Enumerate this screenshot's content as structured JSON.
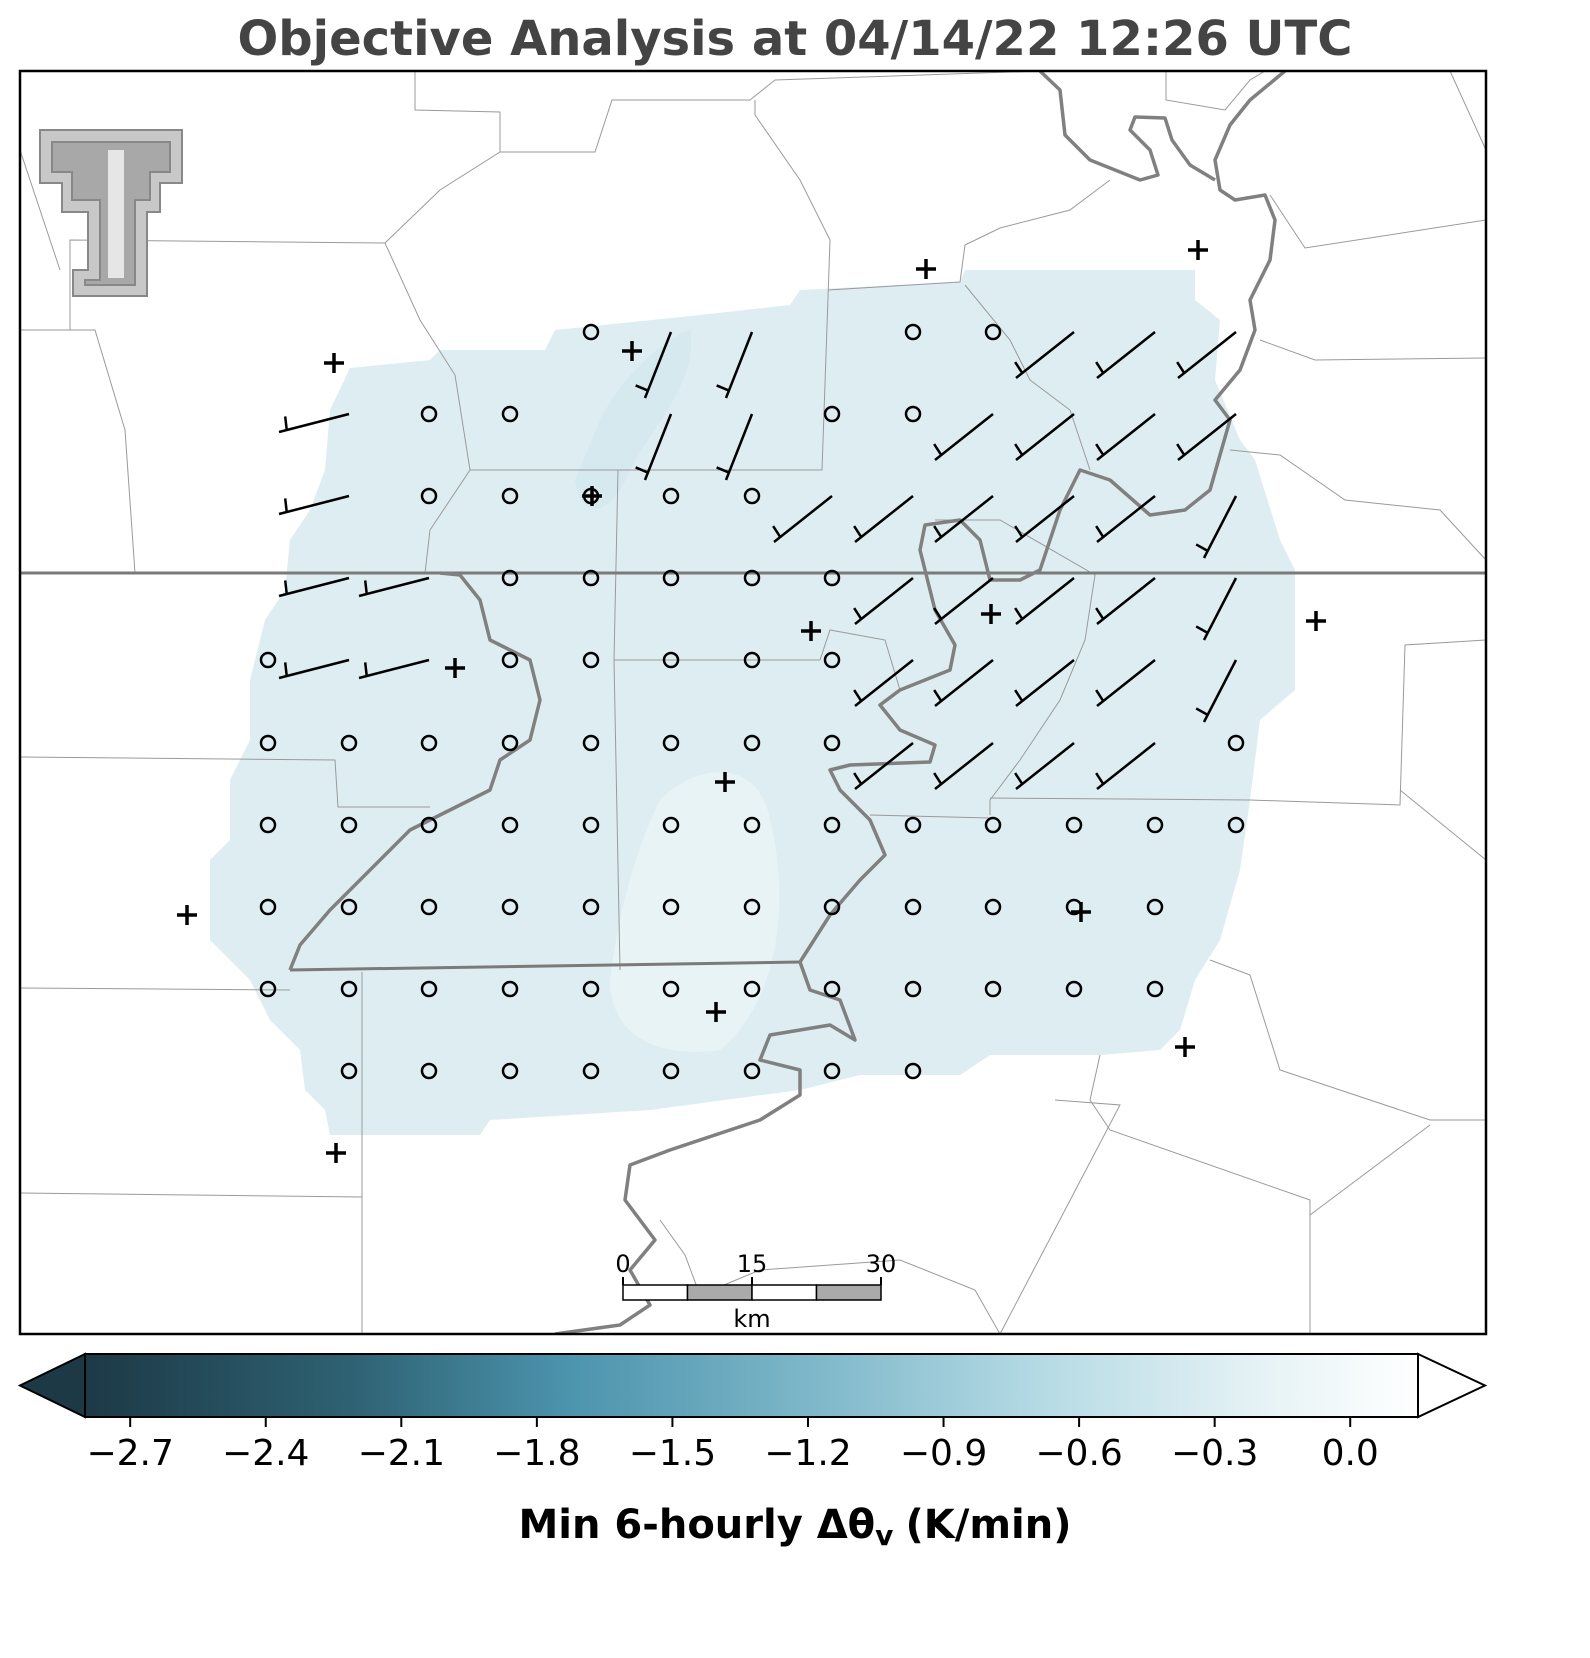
{
  "title": "Objective Analysis at 04/14/22 12:26 UTC",
  "colorbar": {
    "clim": [
      -2.8,
      0.15
    ],
    "extend": "both",
    "ticks": [
      {
        "value": -2.7,
        "label": "−2.7"
      },
      {
        "value": -2.4,
        "label": "−2.4"
      },
      {
        "value": -2.1,
        "label": "−2.1"
      },
      {
        "value": -1.8,
        "label": "−1.8"
      },
      {
        "value": -1.5,
        "label": "−1.5"
      },
      {
        "value": -1.2,
        "label": "−1.2"
      },
      {
        "value": -0.9,
        "label": "−0.9"
      },
      {
        "value": -0.6,
        "label": "−0.6"
      },
      {
        "value": -0.3,
        "label": "−0.3"
      },
      {
        "value": 0,
        "label": "0.0"
      }
    ],
    "label_main": "Min 6-hourly Δθ",
    "label_sub": "v",
    "label_unit": "(K/min)"
  },
  "scale_bar": {
    "ticks": [
      0,
      15,
      30
    ],
    "unit": "km"
  }
}
